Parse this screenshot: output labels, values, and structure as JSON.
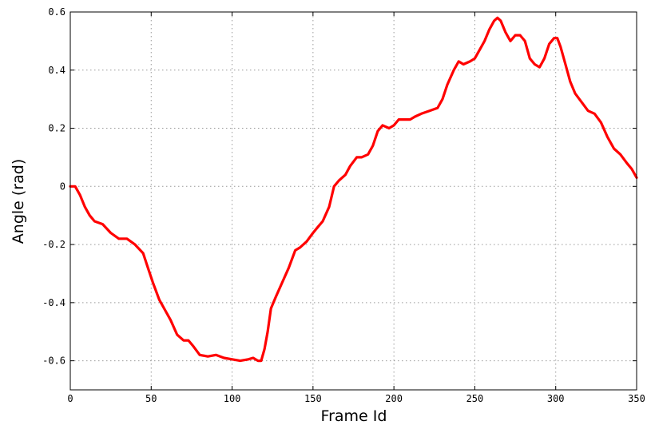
{
  "chart_data": {
    "type": "line",
    "title": "",
    "xlabel": "Frame Id",
    "ylabel": "Angle (rad)",
    "xlim": [
      0,
      350
    ],
    "ylim": [
      -0.7,
      0.6
    ],
    "xticks": [
      0,
      50,
      100,
      150,
      200,
      250,
      300,
      350
    ],
    "yticks": [
      -0.6,
      -0.4,
      -0.2,
      0,
      0.2,
      0.4,
      0.6
    ],
    "xtick_labels": [
      "0",
      "50",
      "100",
      "150",
      "200",
      "250",
      "300",
      "350"
    ],
    "ytick_labels": [
      "-0.6",
      "-0.4",
      "-0.2",
      "0",
      "0.2",
      "0.4",
      "0.6"
    ],
    "grid": true,
    "series": [
      {
        "color": "#ff0000",
        "x": [
          0,
          3,
          6,
          9,
          12,
          15,
          20,
          25,
          30,
          35,
          40,
          45,
          48,
          51,
          55,
          58,
          62,
          66,
          70,
          73,
          76,
          80,
          85,
          90,
          95,
          100,
          105,
          110,
          113,
          116,
          118,
          120,
          122,
          124,
          127,
          131,
          135,
          139,
          142,
          146,
          150,
          153,
          156,
          160,
          163,
          166,
          170,
          173,
          177,
          180,
          184,
          187,
          190,
          193,
          197,
          200,
          203,
          207,
          210,
          213,
          217,
          222,
          227,
          230,
          233,
          237,
          240,
          243,
          247,
          250,
          253,
          256,
          259,
          262,
          264,
          266,
          269,
          272,
          275,
          278,
          281,
          284,
          287,
          290,
          293,
          296,
          299,
          301,
          303,
          306,
          309,
          312,
          316,
          320,
          324,
          328,
          332,
          336,
          340,
          344,
          347,
          350
        ],
        "y": [
          0.0,
          0.0,
          -0.03,
          -0.07,
          -0.1,
          -0.12,
          -0.13,
          -0.16,
          -0.18,
          -0.18,
          -0.2,
          -0.23,
          -0.28,
          -0.33,
          -0.39,
          -0.42,
          -0.46,
          -0.51,
          -0.53,
          -0.53,
          -0.55,
          -0.58,
          -0.585,
          -0.58,
          -0.59,
          -0.595,
          -0.6,
          -0.595,
          -0.59,
          -0.6,
          -0.6,
          -0.56,
          -0.5,
          -0.42,
          -0.38,
          -0.33,
          -0.28,
          -0.22,
          -0.21,
          -0.19,
          -0.16,
          -0.14,
          -0.12,
          -0.07,
          0.0,
          0.02,
          0.04,
          0.07,
          0.1,
          0.1,
          0.11,
          0.14,
          0.19,
          0.21,
          0.2,
          0.21,
          0.23,
          0.23,
          0.23,
          0.24,
          0.25,
          0.26,
          0.27,
          0.3,
          0.35,
          0.4,
          0.43,
          0.42,
          0.43,
          0.44,
          0.47,
          0.5,
          0.54,
          0.57,
          0.58,
          0.57,
          0.53,
          0.5,
          0.52,
          0.52,
          0.5,
          0.44,
          0.42,
          0.41,
          0.44,
          0.49,
          0.51,
          0.51,
          0.48,
          0.42,
          0.36,
          0.32,
          0.29,
          0.26,
          0.25,
          0.22,
          0.17,
          0.13,
          0.11,
          0.08,
          0.06,
          0.03
        ]
      }
    ]
  }
}
